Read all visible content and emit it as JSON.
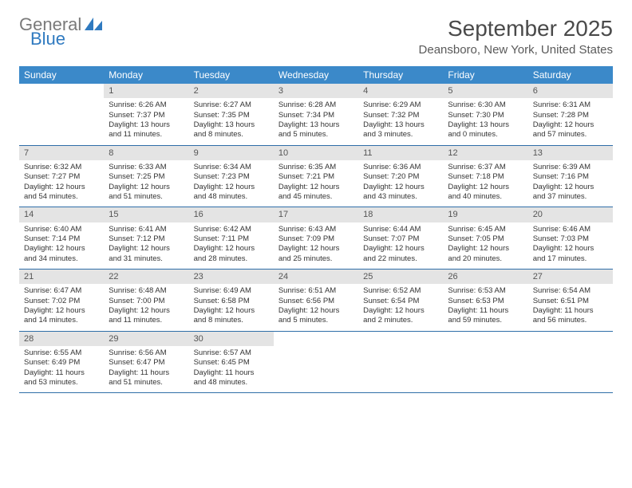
{
  "logo": {
    "text1": "General",
    "text2": "Blue",
    "icon_color": "#2f7ac0",
    "text1_color": "#7a7a7a"
  },
  "title": "September 2025",
  "location": "Deansboro, New York, United States",
  "header_bg": "#3b89c9",
  "header_text_color": "#ffffff",
  "daynum_bg": "#e4e4e4",
  "border_color": "#2f6ea8",
  "day_names": [
    "Sunday",
    "Monday",
    "Tuesday",
    "Wednesday",
    "Thursday",
    "Friday",
    "Saturday"
  ],
  "weeks": [
    [
      {
        "empty": true
      },
      {
        "num": "1",
        "sunrise": "Sunrise: 6:26 AM",
        "sunset": "Sunset: 7:37 PM",
        "dl1": "Daylight: 13 hours",
        "dl2": "and 11 minutes."
      },
      {
        "num": "2",
        "sunrise": "Sunrise: 6:27 AM",
        "sunset": "Sunset: 7:35 PM",
        "dl1": "Daylight: 13 hours",
        "dl2": "and 8 minutes."
      },
      {
        "num": "3",
        "sunrise": "Sunrise: 6:28 AM",
        "sunset": "Sunset: 7:34 PM",
        "dl1": "Daylight: 13 hours",
        "dl2": "and 5 minutes."
      },
      {
        "num": "4",
        "sunrise": "Sunrise: 6:29 AM",
        "sunset": "Sunset: 7:32 PM",
        "dl1": "Daylight: 13 hours",
        "dl2": "and 3 minutes."
      },
      {
        "num": "5",
        "sunrise": "Sunrise: 6:30 AM",
        "sunset": "Sunset: 7:30 PM",
        "dl1": "Daylight: 13 hours",
        "dl2": "and 0 minutes."
      },
      {
        "num": "6",
        "sunrise": "Sunrise: 6:31 AM",
        "sunset": "Sunset: 7:28 PM",
        "dl1": "Daylight: 12 hours",
        "dl2": "and 57 minutes."
      }
    ],
    [
      {
        "num": "7",
        "sunrise": "Sunrise: 6:32 AM",
        "sunset": "Sunset: 7:27 PM",
        "dl1": "Daylight: 12 hours",
        "dl2": "and 54 minutes."
      },
      {
        "num": "8",
        "sunrise": "Sunrise: 6:33 AM",
        "sunset": "Sunset: 7:25 PM",
        "dl1": "Daylight: 12 hours",
        "dl2": "and 51 minutes."
      },
      {
        "num": "9",
        "sunrise": "Sunrise: 6:34 AM",
        "sunset": "Sunset: 7:23 PM",
        "dl1": "Daylight: 12 hours",
        "dl2": "and 48 minutes."
      },
      {
        "num": "10",
        "sunrise": "Sunrise: 6:35 AM",
        "sunset": "Sunset: 7:21 PM",
        "dl1": "Daylight: 12 hours",
        "dl2": "and 45 minutes."
      },
      {
        "num": "11",
        "sunrise": "Sunrise: 6:36 AM",
        "sunset": "Sunset: 7:20 PM",
        "dl1": "Daylight: 12 hours",
        "dl2": "and 43 minutes."
      },
      {
        "num": "12",
        "sunrise": "Sunrise: 6:37 AM",
        "sunset": "Sunset: 7:18 PM",
        "dl1": "Daylight: 12 hours",
        "dl2": "and 40 minutes."
      },
      {
        "num": "13",
        "sunrise": "Sunrise: 6:39 AM",
        "sunset": "Sunset: 7:16 PM",
        "dl1": "Daylight: 12 hours",
        "dl2": "and 37 minutes."
      }
    ],
    [
      {
        "num": "14",
        "sunrise": "Sunrise: 6:40 AM",
        "sunset": "Sunset: 7:14 PM",
        "dl1": "Daylight: 12 hours",
        "dl2": "and 34 minutes."
      },
      {
        "num": "15",
        "sunrise": "Sunrise: 6:41 AM",
        "sunset": "Sunset: 7:12 PM",
        "dl1": "Daylight: 12 hours",
        "dl2": "and 31 minutes."
      },
      {
        "num": "16",
        "sunrise": "Sunrise: 6:42 AM",
        "sunset": "Sunset: 7:11 PM",
        "dl1": "Daylight: 12 hours",
        "dl2": "and 28 minutes."
      },
      {
        "num": "17",
        "sunrise": "Sunrise: 6:43 AM",
        "sunset": "Sunset: 7:09 PM",
        "dl1": "Daylight: 12 hours",
        "dl2": "and 25 minutes."
      },
      {
        "num": "18",
        "sunrise": "Sunrise: 6:44 AM",
        "sunset": "Sunset: 7:07 PM",
        "dl1": "Daylight: 12 hours",
        "dl2": "and 22 minutes."
      },
      {
        "num": "19",
        "sunrise": "Sunrise: 6:45 AM",
        "sunset": "Sunset: 7:05 PM",
        "dl1": "Daylight: 12 hours",
        "dl2": "and 20 minutes."
      },
      {
        "num": "20",
        "sunrise": "Sunrise: 6:46 AM",
        "sunset": "Sunset: 7:03 PM",
        "dl1": "Daylight: 12 hours",
        "dl2": "and 17 minutes."
      }
    ],
    [
      {
        "num": "21",
        "sunrise": "Sunrise: 6:47 AM",
        "sunset": "Sunset: 7:02 PM",
        "dl1": "Daylight: 12 hours",
        "dl2": "and 14 minutes."
      },
      {
        "num": "22",
        "sunrise": "Sunrise: 6:48 AM",
        "sunset": "Sunset: 7:00 PM",
        "dl1": "Daylight: 12 hours",
        "dl2": "and 11 minutes."
      },
      {
        "num": "23",
        "sunrise": "Sunrise: 6:49 AM",
        "sunset": "Sunset: 6:58 PM",
        "dl1": "Daylight: 12 hours",
        "dl2": "and 8 minutes."
      },
      {
        "num": "24",
        "sunrise": "Sunrise: 6:51 AM",
        "sunset": "Sunset: 6:56 PM",
        "dl1": "Daylight: 12 hours",
        "dl2": "and 5 minutes."
      },
      {
        "num": "25",
        "sunrise": "Sunrise: 6:52 AM",
        "sunset": "Sunset: 6:54 PM",
        "dl1": "Daylight: 12 hours",
        "dl2": "and 2 minutes."
      },
      {
        "num": "26",
        "sunrise": "Sunrise: 6:53 AM",
        "sunset": "Sunset: 6:53 PM",
        "dl1": "Daylight: 11 hours",
        "dl2": "and 59 minutes."
      },
      {
        "num": "27",
        "sunrise": "Sunrise: 6:54 AM",
        "sunset": "Sunset: 6:51 PM",
        "dl1": "Daylight: 11 hours",
        "dl2": "and 56 minutes."
      }
    ],
    [
      {
        "num": "28",
        "sunrise": "Sunrise: 6:55 AM",
        "sunset": "Sunset: 6:49 PM",
        "dl1": "Daylight: 11 hours",
        "dl2": "and 53 minutes."
      },
      {
        "num": "29",
        "sunrise": "Sunrise: 6:56 AM",
        "sunset": "Sunset: 6:47 PM",
        "dl1": "Daylight: 11 hours",
        "dl2": "and 51 minutes."
      },
      {
        "num": "30",
        "sunrise": "Sunrise: 6:57 AM",
        "sunset": "Sunset: 6:45 PM",
        "dl1": "Daylight: 11 hours",
        "dl2": "and 48 minutes."
      },
      {
        "empty": true
      },
      {
        "empty": true
      },
      {
        "empty": true
      },
      {
        "empty": true
      }
    ]
  ]
}
